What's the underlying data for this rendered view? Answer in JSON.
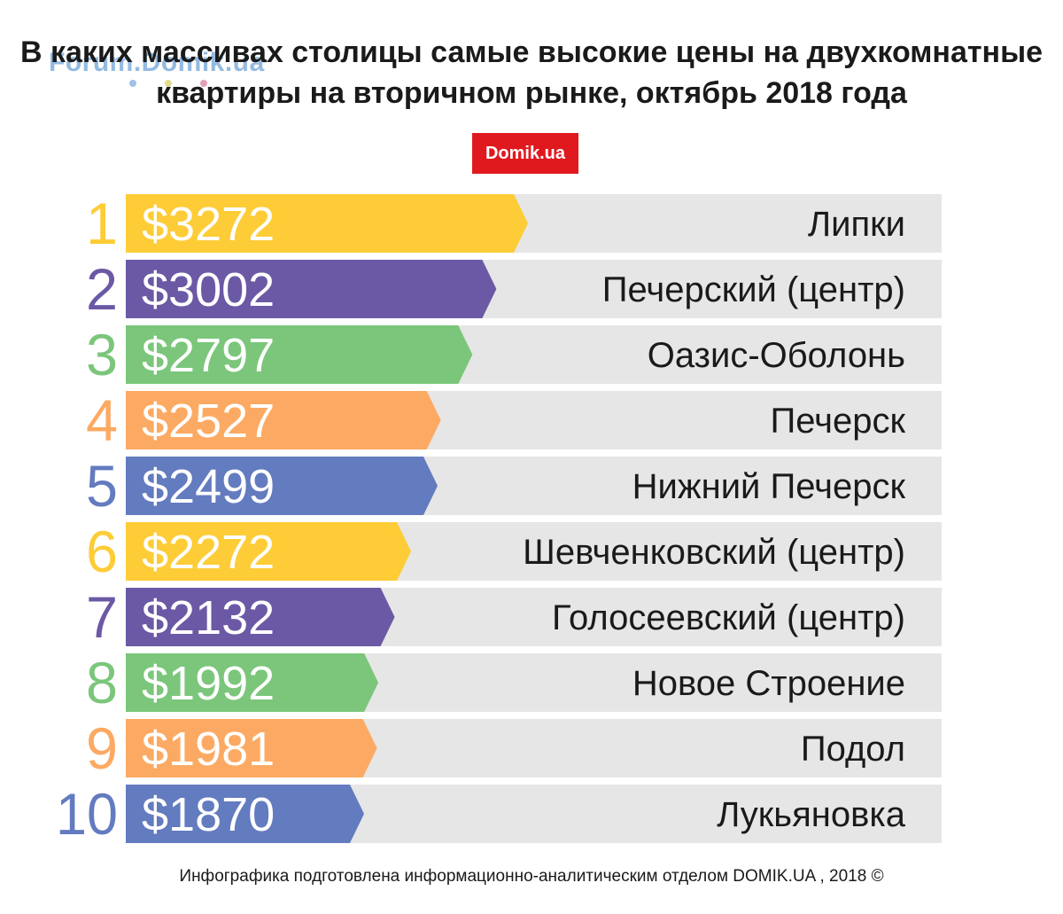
{
  "watermark": {
    "text": "Forum.Domik.ua",
    "dot_colors": [
      "#9ec3e6",
      "#e3de8e",
      "#e6a0b4"
    ]
  },
  "title": {
    "line1": "В каких массивах столицы самые высокие цены на двухкомнатные",
    "line2": "квартиры на вторичном рынке, октябрь 2018 года"
  },
  "logo": {
    "text": "Domik.ua",
    "color": "#e0191f"
  },
  "footer": {
    "text": "Инфографика подготовлена информационно-аналитическим отделом DOMIK.UA , 2018 ©"
  },
  "colors": {
    "track": "#e6e6e6",
    "label_text": "#1a1a1a",
    "value_text": "#ffffff"
  },
  "chart_data": {
    "type": "bar",
    "orientation": "horizontal",
    "value_prefix": "$",
    "ranks": [
      "1",
      "2",
      "3",
      "4",
      "5",
      "6",
      "7",
      "8",
      "9",
      "10"
    ],
    "categories": [
      "Липки",
      "Печерский (центр)",
      "Оазис-Оболонь",
      "Печерск",
      "Нижний Печерск",
      "Шевченковский (центр)",
      "Голосеевский (центр)",
      "Новое Строение",
      "Подол",
      "Лукьяновка"
    ],
    "values": [
      3272,
      3002,
      2797,
      2527,
      2499,
      2272,
      2132,
      1992,
      1981,
      1870
    ],
    "value_labels": [
      "$3272",
      "$3002",
      "$2797",
      "$2527",
      "$2499",
      "$2272",
      "$2132",
      "$1992",
      "$1981",
      "$1870"
    ],
    "bar_colors": [
      "#fdcc36",
      "#6b59a5",
      "#7bc67b",
      "#fcaa63",
      "#637bbf",
      "#fdcc36",
      "#6b59a5",
      "#7bc67b",
      "#fcaa63",
      "#637bbf"
    ]
  }
}
